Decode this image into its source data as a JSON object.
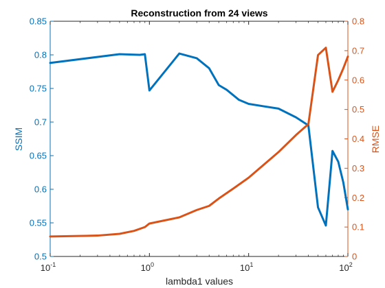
{
  "chart_data": {
    "type": "line",
    "title": "Reconstruction from 24 views",
    "xlabel": "lambda1 values",
    "x_scale": "log",
    "xlim": [
      0.1,
      100
    ],
    "x_ticks": [
      {
        "value": 0.1,
        "base": "10",
        "exp": "-1"
      },
      {
        "value": 1,
        "base": "10",
        "exp": "0"
      },
      {
        "value": 10,
        "base": "10",
        "exp": "1"
      },
      {
        "value": 100,
        "base": "10",
        "exp": "2"
      }
    ],
    "y_left": {
      "label": "SSIM",
      "lim": [
        0.5,
        0.85
      ],
      "ticks": [
        "0.5",
        "0.55",
        "0.6",
        "0.65",
        "0.7",
        "0.75",
        "0.8",
        "0.85"
      ],
      "color": "#0072BD"
    },
    "y_right": {
      "label": "RMSE",
      "lim": [
        0,
        0.8
      ],
      "ticks": [
        "0",
        "0.1",
        "0.2",
        "0.3",
        "0.4",
        "0.5",
        "0.6",
        "0.7",
        "0.8"
      ],
      "color": "#D95319"
    },
    "grid": false,
    "series": [
      {
        "axis": "left",
        "color": "#0072BD",
        "x": [
          0.1,
          0.5,
          0.8,
          0.9,
          1,
          2,
          3,
          4,
          5,
          6,
          8,
          10,
          20,
          30,
          40,
          50,
          60,
          70,
          80,
          90,
          100
        ],
        "y": [
          0.788,
          0.801,
          0.8,
          0.801,
          0.747,
          0.802,
          0.795,
          0.78,
          0.755,
          0.748,
          0.733,
          0.727,
          0.72,
          0.707,
          0.695,
          0.573,
          0.546,
          0.657,
          0.641,
          0.61,
          0.57
        ]
      },
      {
        "axis": "right",
        "color": "#D95319",
        "x": [
          0.1,
          0.3,
          0.5,
          0.7,
          0.9,
          1,
          2,
          3,
          4,
          5,
          7,
          10,
          20,
          30,
          40,
          50,
          60,
          70,
          80,
          90,
          100
        ],
        "y": [
          0.068,
          0.071,
          0.077,
          0.087,
          0.1,
          0.112,
          0.133,
          0.158,
          0.172,
          0.197,
          0.231,
          0.268,
          0.355,
          0.413,
          0.45,
          0.685,
          0.71,
          0.56,
          0.6,
          0.64,
          0.68
        ]
      }
    ]
  }
}
